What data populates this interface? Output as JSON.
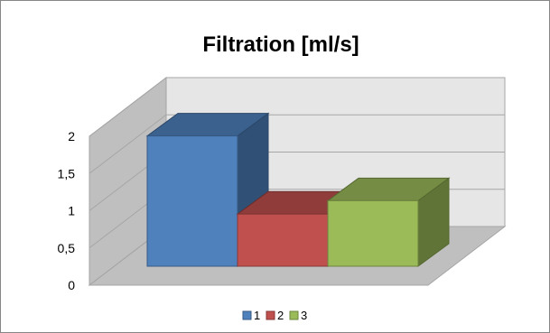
{
  "chart_data": {
    "type": "bar",
    "title": "Filtration [ml/s]",
    "categories": [
      ""
    ],
    "series": [
      {
        "name": "1",
        "values": [
          1.75
        ],
        "color": "#4F81BD"
      },
      {
        "name": "2",
        "values": [
          0.7
        ],
        "color": "#C0504D"
      },
      {
        "name": "3",
        "values": [
          0.88
        ],
        "color": "#9BBB59"
      }
    ],
    "ylim": [
      0,
      2
    ],
    "yticks": [
      "0",
      "0,5",
      "1",
      "1,5",
      "2"
    ],
    "grid": true,
    "three_d": true,
    "legend_position": "bottom"
  }
}
